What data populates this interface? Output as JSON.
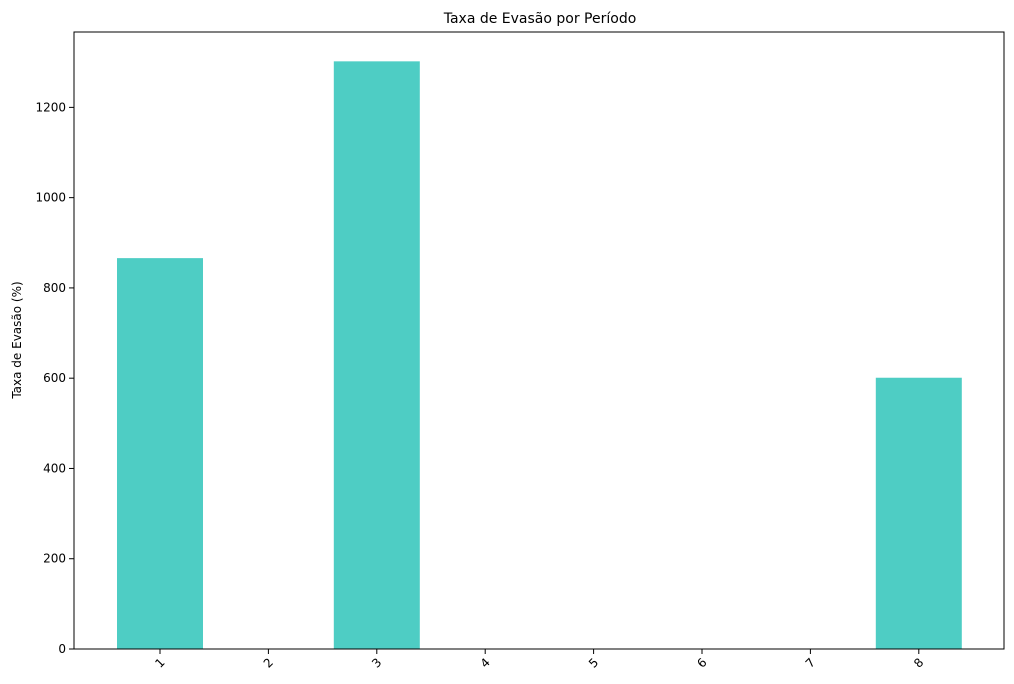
{
  "chart_data": {
    "type": "bar",
    "title": "Taxa de Evasão por Período",
    "xlabel": "",
    "ylabel": "Taxa de Evasão (%)",
    "categories": [
      "1",
      "2",
      "3",
      "4",
      "5",
      "6",
      "7",
      "8"
    ],
    "values": [
      866,
      0,
      1302,
      0,
      0,
      0,
      0,
      601
    ],
    "ylim": [
      0,
      1367
    ],
    "yticks": [
      0,
      200,
      400,
      600,
      800,
      1000,
      1200
    ],
    "bar_color": "#4ecdc4",
    "grid": false,
    "x_tick_rotation_deg": 45
  }
}
